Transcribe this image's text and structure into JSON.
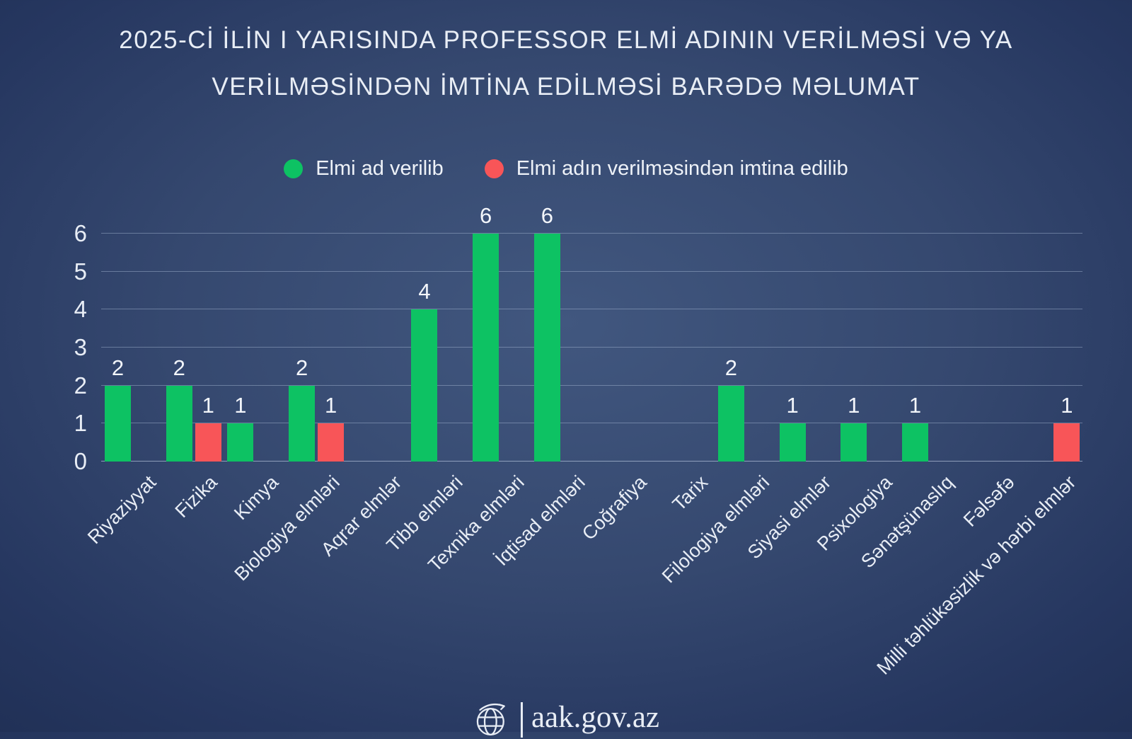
{
  "title": {
    "line1": "2025-Cİ İLİN I YARISINDA PROFESSOR ELMİ ADININ VERİLMƏSİ VƏ YA",
    "line2": "VERİLMƏSİNDƏN İMTİNA EDİLMƏSİ BARƏDƏ MƏLUMAT"
  },
  "legend": {
    "items": [
      {
        "label": "Elmi ad verilib",
        "color": "#0dc263",
        "icon": "green-dot-icon"
      },
      {
        "label": "Elmi adın verilməsindən imtina edilib",
        "color": "#f85558",
        "icon": "red-dot-icon"
      }
    ]
  },
  "footer": {
    "site": "aak.gov.az",
    "icon": "globe-icon"
  },
  "colors": {
    "background_center": "#41577f",
    "background_edge": "#1d2c50",
    "granted_green": "#0dc263",
    "refused_red": "#f85558",
    "text": "#e8edf5",
    "gridline": "rgba(170,188,216,0.45)"
  },
  "chart_data": {
    "type": "bar",
    "title": "2025-Cİ İLİN I YARISINDA PROFESSOR ELMİ ADININ VERİLMƏSİ VƏ YA VERİLMƏSİNDƏN İMTİNA EDİLMƏSİ BARƏDƏ MƏLUMAT",
    "categories": [
      "Riyaziyyat",
      "Fizika",
      "Kimya",
      "Biologiya elmləri",
      "Aqrar elmlər",
      "Tibb elmləri",
      "Texnika elmləri",
      "İqtisad elmləri",
      "Coğrafiya",
      "Tarix",
      "Filologiya elmləri",
      "Siyasi elmlər",
      "Psixologiya",
      "Sənətşünaslıq",
      "Fəlsəfə",
      "Milli təhlükəsizlik və hərbi elmlər"
    ],
    "series": [
      {
        "name": "Elmi ad verilib",
        "color": "#0dc263",
        "values": [
          2,
          2,
          1,
          2,
          0,
          4,
          6,
          6,
          0,
          0,
          2,
          1,
          1,
          1,
          0,
          0
        ]
      },
      {
        "name": "Elmi adın verilməsindən imtina edilib",
        "color": "#f85558",
        "values": [
          0,
          1,
          0,
          1,
          0,
          0,
          0,
          0,
          0,
          0,
          0,
          0,
          0,
          0,
          0,
          1
        ]
      }
    ],
    "xlabel": "",
    "ylabel": "",
    "ylim": [
      0,
      6
    ],
    "yticks": [
      0,
      1,
      2,
      3,
      4,
      5,
      6
    ],
    "grid": true,
    "legend_position": "top",
    "bar_value_labels": true,
    "x_tick_rotation": 45
  }
}
